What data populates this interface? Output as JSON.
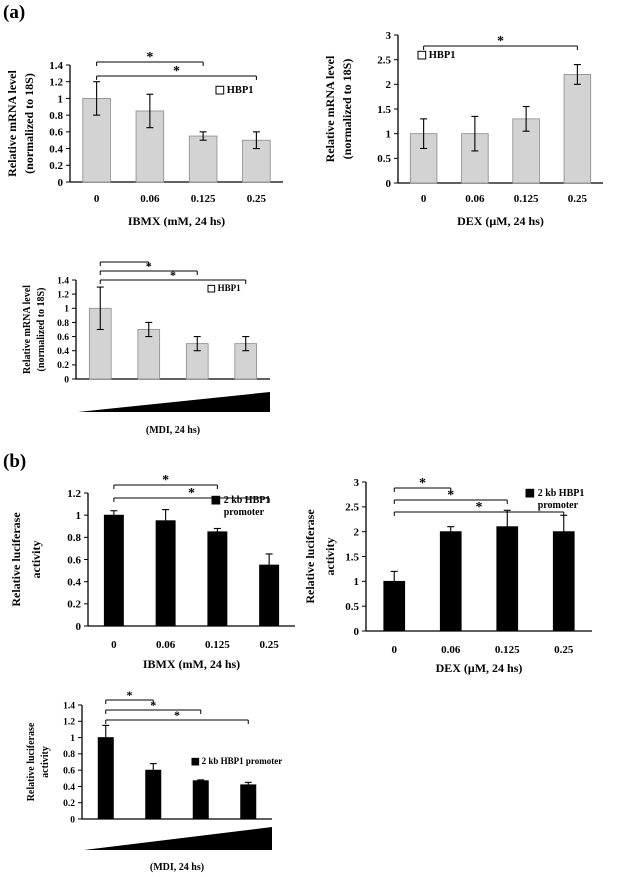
{
  "panels": [
    {
      "label": "(a)"
    },
    {
      "label": "(b)"
    }
  ],
  "chart_data": [
    {
      "type": "bar",
      "categories": [
        "0",
        "0.06",
        "0.125",
        "0.25"
      ],
      "series": [
        {
          "name": "HBP1",
          "values": [
            1.0,
            0.85,
            0.55,
            0.5
          ],
          "errors": [
            0.2,
            0.2,
            0.05,
            0.1
          ]
        }
      ],
      "xlabel": "IBMX (mM, 24 hs)",
      "ylabel": [
        "Relative mRNA level",
        "(normalized to 18S)"
      ],
      "ylim": [
        0,
        1.4
      ],
      "yticks": [
        "0",
        "0.2",
        "0.4",
        "0.6",
        "0.8",
        "1",
        "1.2",
        "1.4"
      ],
      "bar_color": "#d3d3d3",
      "significance": [
        {
          "from": 0,
          "to": 2,
          "label": "*"
        },
        {
          "from": 0,
          "to": 3,
          "label": "*"
        }
      ],
      "legend_position": "right"
    },
    {
      "type": "bar",
      "categories": [
        "0",
        "0.06",
        "0.125",
        "0.25"
      ],
      "series": [
        {
          "name": "HBP1",
          "values": [
            1.0,
            1.0,
            1.3,
            2.2
          ],
          "errors": [
            0.3,
            0.35,
            0.25,
            0.2
          ]
        }
      ],
      "xlabel": "DEX (μM, 24 hs)",
      "ylabel": [
        "Relative mRNA level",
        "(normalized to 18S)"
      ],
      "ylim": [
        0,
        3
      ],
      "yticks": [
        "0",
        "0.5",
        "1",
        "1.5",
        "2",
        "2.5",
        "3"
      ],
      "bar_color": "#d3d3d3",
      "significance": [
        {
          "from": 0,
          "to": 3,
          "label": "*"
        }
      ],
      "legend_position": "top-left"
    },
    {
      "type": "bar",
      "categories": [
        "",
        "",
        "",
        ""
      ],
      "series": [
        {
          "name": "HBP1",
          "values": [
            1.0,
            0.7,
            0.5,
            0.5
          ],
          "errors": [
            0.3,
            0.1,
            0.1,
            0.1
          ]
        }
      ],
      "xlabel": "(MDI, 24 hs)",
      "ylabel": [
        "Relative mRNA level",
        "(normalized to 18S)"
      ],
      "ylim": [
        0,
        1.4
      ],
      "yticks": [
        "0",
        "0.2",
        "0.4",
        "0.6",
        "0.8",
        "1",
        "1.2",
        "1.4"
      ],
      "bar_color": "#d3d3d3",
      "significance": [
        {
          "from": 0,
          "to": 1,
          "label": "*"
        },
        {
          "from": 0,
          "to": 2,
          "label": "*"
        },
        {
          "from": 0,
          "to": 3,
          "label": "*"
        }
      ],
      "legend_position": "right",
      "gradient_wedge": true
    },
    {
      "type": "bar",
      "categories": [
        "0",
        "0.06",
        "0.125",
        "0.25"
      ],
      "series": [
        {
          "name": "2 kb HBP1 promoter",
          "values": [
            1.0,
            0.95,
            0.85,
            0.55
          ],
          "errors": [
            0.04,
            0.1,
            0.03,
            0.1
          ]
        }
      ],
      "xlabel": "IBMX (mM, 24 hs)",
      "ylabel": [
        "Relative luciferase",
        "activity"
      ],
      "ylim": [
        0,
        1.2
      ],
      "yticks": [
        "0",
        "0.2",
        "0.4",
        "0.6",
        "0.8",
        "1",
        "1.2"
      ],
      "bar_color": "#000000",
      "significance": [
        {
          "from": 0,
          "to": 2,
          "label": "*"
        },
        {
          "from": 0,
          "to": 3,
          "label": "*"
        }
      ],
      "legend_position": "top-right"
    },
    {
      "type": "bar",
      "categories": [
        "0",
        "0.06",
        "0.125",
        "0.25"
      ],
      "series": [
        {
          "name": "2 kb HBP1 promoter",
          "values": [
            1.0,
            2.0,
            2.1,
            2.0
          ],
          "errors": [
            0.2,
            0.1,
            0.33,
            0.33
          ]
        }
      ],
      "xlabel": "DEX (μM, 24 hs)",
      "ylabel": [
        "Relative luciferase",
        "activity"
      ],
      "ylim": [
        0,
        3
      ],
      "yticks": [
        "0",
        "0.5",
        "1",
        "1.5",
        "2",
        "2.5",
        "3"
      ],
      "bar_color": "#000000",
      "significance": [
        {
          "from": 0,
          "to": 1,
          "label": "*"
        },
        {
          "from": 0,
          "to": 2,
          "label": "*"
        },
        {
          "from": 0,
          "to": 3,
          "label": "*"
        }
      ],
      "legend_position": "top-right"
    },
    {
      "type": "bar",
      "categories": [
        "",
        "",
        "",
        ""
      ],
      "series": [
        {
          "name": "2 kb HBP1 promoter",
          "values": [
            1.0,
            0.6,
            0.47,
            0.42
          ],
          "errors": [
            0.15,
            0.08,
            0.01,
            0.03
          ]
        }
      ],
      "xlabel": "(MDI, 24 hs)",
      "ylabel": [
        "Relative luciferase",
        "activity"
      ],
      "ylim": [
        0,
        1.4
      ],
      "yticks": [
        "0",
        "0.2",
        "0.4",
        "0.6",
        "0.8",
        "1",
        "1.2",
        "1.4"
      ],
      "bar_color": "#000000",
      "significance": [
        {
          "from": 0,
          "to": 1,
          "label": "*"
        },
        {
          "from": 0,
          "to": 2,
          "label": "*"
        },
        {
          "from": 0,
          "to": 3,
          "label": "*"
        }
      ],
      "legend_position": "right",
      "gradient_wedge": true
    }
  ]
}
